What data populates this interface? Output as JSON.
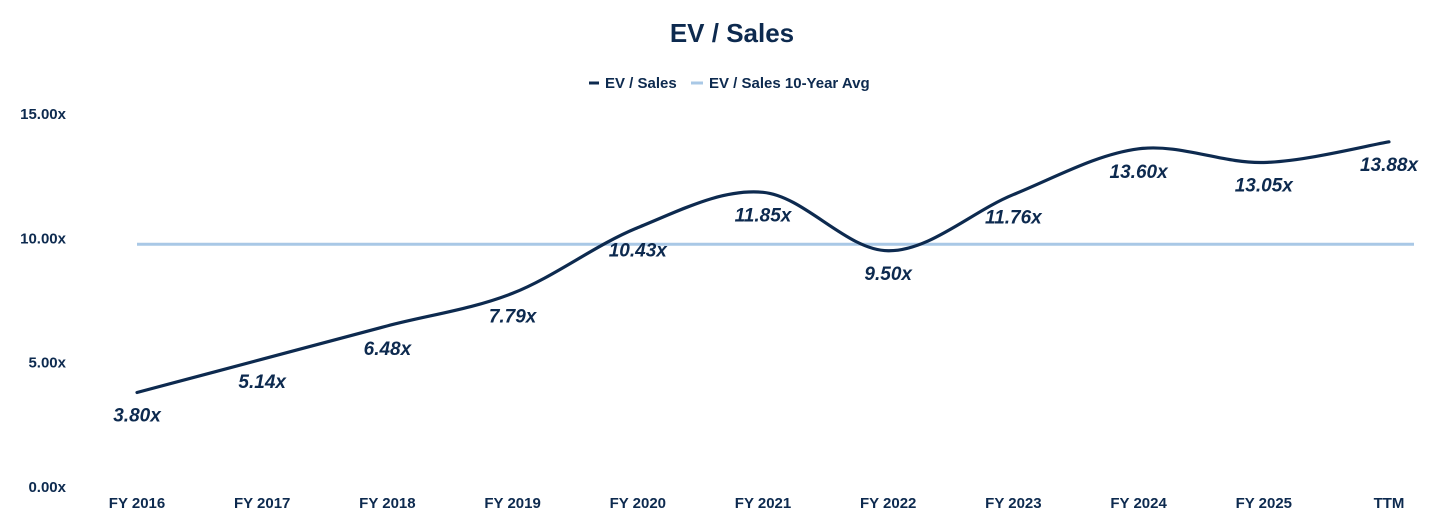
{
  "chart_data": {
    "type": "line",
    "title": "EV / Sales",
    "categories": [
      "FY 2016",
      "FY 2017",
      "FY 2018",
      "FY 2019",
      "FY 2020",
      "FY 2021",
      "FY 2022",
      "FY 2023",
      "FY 2024",
      "FY 2025",
      "TTM"
    ],
    "series": [
      {
        "name": "EV / Sales",
        "values": [
          3.8,
          5.14,
          6.48,
          7.79,
          10.43,
          11.85,
          9.5,
          11.76,
          13.6,
          13.05,
          13.88
        ],
        "labels": [
          "3.80x",
          "5.14x",
          "6.48x",
          "7.79x",
          "10.43x",
          "11.85x",
          "9.50x",
          "11.76x",
          "13.60x",
          "13.05x",
          "13.88x"
        ],
        "color": "#0d2a4f"
      },
      {
        "name": "EV / Sales 10-Year Avg",
        "values": [
          9.76,
          9.76,
          9.76,
          9.76,
          9.76,
          9.76,
          9.76,
          9.76,
          9.76,
          9.76,
          9.76
        ],
        "color": "#a9c8e6"
      }
    ],
    "yticks": [
      "0.00x",
      "5.00x",
      "10.00x",
      "15.00x"
    ],
    "ytick_values": [
      0,
      5,
      10,
      15
    ],
    "ylim": [
      0,
      15
    ],
    "legend_position": "top-center",
    "grid": false,
    "text_color": "#0d2a4f"
  }
}
